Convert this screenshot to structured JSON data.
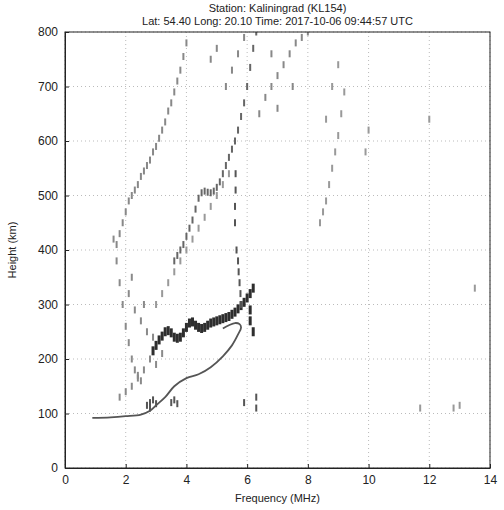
{
  "chart_data": {
    "type": "scatter",
    "title": "Station: Kaliningrad (KL154)",
    "subtitle": "Lat: 54.40 Long: 20.10 Time: 2017-10-06 09:44:57 UTC",
    "x_label": "Frequency (MHz)",
    "y_label": "Height (km)",
    "xlim": [
      0,
      14
    ],
    "ylim": [
      0,
      800
    ],
    "xticks": [
      0,
      2,
      4,
      6,
      8,
      10,
      12,
      14
    ],
    "yticks": [
      0,
      100,
      200,
      300,
      400,
      500,
      600,
      700,
      800
    ],
    "grid": true,
    "marker": "dash",
    "series": [
      {
        "type": "scatter",
        "color": "#2e2e2e",
        "marker": "dash",
        "x": [
          2.9,
          3.0,
          3.1,
          3.2,
          3.3,
          3.4,
          3.5,
          3.6,
          3.7,
          3.8,
          3.9,
          4.0,
          4.1,
          4.2,
          4.3,
          4.4,
          4.5,
          4.6,
          4.7,
          4.8,
          4.9,
          5.0,
          5.1,
          5.2,
          5.3,
          5.4,
          5.5,
          5.6,
          5.7,
          5.8,
          5.9,
          6.0,
          6.1,
          6.1,
          6.1,
          6.2,
          6.2
        ],
        "values": [
          215,
          225,
          235,
          242,
          250,
          252,
          248,
          240,
          238,
          240,
          248,
          258,
          266,
          268,
          262,
          258,
          256,
          258,
          262,
          266,
          268,
          270,
          272,
          274,
          276,
          278,
          282,
          286,
          292,
          298,
          304,
          312,
          320,
          290,
          270,
          330,
          250
        ]
      },
      {
        "type": "scatter",
        "color": "#555555",
        "marker": "dash",
        "x": [
          5.65,
          5.7,
          5.72,
          5.75,
          5.78,
          5.8,
          5.6,
          5.6,
          5.62,
          5.62
        ],
        "values": [
          400,
          380,
          360,
          340,
          320,
          300,
          450,
          480,
          510,
          540
        ]
      },
      {
        "type": "scatter",
        "color": "#666666",
        "marker": "dash",
        "x": [
          3.6,
          3.7,
          3.8,
          3.9,
          4.0,
          4.1,
          4.2,
          4.3,
          4.4,
          4.5,
          4.6,
          4.7,
          4.8,
          4.9,
          5.0,
          5.1,
          5.2,
          5.3,
          5.4,
          5.5,
          5.6,
          5.7,
          5.8,
          5.9,
          6.0,
          6.1,
          6.2,
          6.3
        ],
        "values": [
          380,
          390,
          400,
          410,
          425,
          440,
          455,
          475,
          495,
          505,
          508,
          506,
          505,
          508,
          515,
          525,
          540,
          555,
          570,
          585,
          600,
          620,
          645,
          670,
          700,
          735,
          770,
          800
        ]
      },
      {
        "type": "scatter",
        "color": "#888888",
        "marker": "dash",
        "x": [
          1.7,
          1.8,
          1.9,
          2.0,
          2.1,
          2.2,
          2.3,
          2.4,
          2.5,
          2.6,
          2.7,
          2.8,
          2.9,
          3.0,
          3.1,
          3.2,
          3.3,
          3.4,
          3.5,
          3.6,
          3.7,
          3.8,
          3.9,
          4.0
        ],
        "values": [
          410,
          430,
          450,
          470,
          490,
          500,
          510,
          520,
          535,
          545,
          555,
          565,
          580,
          590,
          605,
          620,
          635,
          655,
          670,
          690,
          710,
          730,
          755,
          780
        ]
      },
      {
        "type": "scatter",
        "color": "#8a8a8a",
        "marker": "dash",
        "x": [
          1.6,
          1.7,
          1.8,
          1.9,
          2.0,
          2.1,
          2.2,
          2.3,
          2.4,
          2.5,
          1.8,
          2.0,
          2.2,
          2.4,
          2.6,
          2.8,
          3.0,
          3.2,
          2.1,
          2.3,
          2.5,
          2.7,
          2.9,
          2.2,
          2.6
        ],
        "values": [
          420,
          380,
          340,
          300,
          260,
          230,
          200,
          180,
          170,
          160,
          130,
          140,
          150,
          165,
          180,
          200,
          190,
          210,
          320,
          290,
          270,
          250,
          240,
          350,
          300
        ]
      },
      {
        "type": "scatter",
        "color": "#555555",
        "marker": "dash",
        "x": [
          2.7,
          2.8,
          2.9,
          3.0,
          2.8,
          3.5,
          3.6,
          3.7,
          5.9,
          6.3,
          6.3
        ],
        "values": [
          115,
          120,
          125,
          118,
          110,
          120,
          125,
          118,
          120,
          110,
          130
        ]
      },
      {
        "type": "scatter",
        "color": "#999999",
        "marker": "dash",
        "x": [
          8.4,
          8.5,
          8.6,
          8.7,
          8.8,
          8.9,
          9.0,
          9.1,
          9.2,
          8.6,
          8.8,
          9.0,
          10.0,
          9.9,
          12.0,
          12.8,
          13.0,
          11.7,
          13.5
        ],
        "values": [
          450,
          470,
          490,
          520,
          550,
          580,
          610,
          650,
          690,
          640,
          700,
          740,
          620,
          580,
          640,
          110,
          115,
          110,
          330
        ]
      },
      {
        "type": "scatter",
        "color": "#888888",
        "marker": "dash",
        "x": [
          6.4,
          6.6,
          6.8,
          7.0,
          7.2,
          7.4,
          7.6,
          7.8,
          8.0,
          7.0,
          7.5,
          6.8,
          5.3,
          5.5,
          5.7,
          5.9,
          4.8,
          5.0
        ],
        "values": [
          650,
          680,
          700,
          720,
          740,
          760,
          780,
          790,
          800,
          660,
          700,
          760,
          700,
          730,
          760,
          790,
          750,
          770
        ]
      },
      {
        "type": "scatter",
        "color": "#999999",
        "marker": "dash",
        "x": [
          3.0,
          3.2,
          3.4,
          3.6,
          3.8,
          4.0,
          4.2,
          4.4,
          4.6,
          4.8,
          5.0,
          5.2,
          5.4
        ],
        "values": [
          300,
          320,
          340,
          360,
          380,
          400,
          420,
          440,
          460,
          480,
          500,
          520,
          540
        ]
      },
      {
        "type": "line",
        "color": "#555555",
        "line_style": "solid",
        "x": [
          0.9,
          1.5,
          2.0,
          2.5,
          2.8,
          3.0,
          3.3,
          3.6,
          4.0,
          4.4,
          4.8,
          5.2,
          5.5,
          5.7,
          5.8,
          5.75,
          5.6,
          5.4,
          5.2
        ],
        "values": [
          92,
          93,
          95,
          98,
          105,
          115,
          130,
          150,
          165,
          172,
          185,
          205,
          225,
          245,
          258,
          264,
          266,
          262,
          256
        ]
      }
    ]
  }
}
